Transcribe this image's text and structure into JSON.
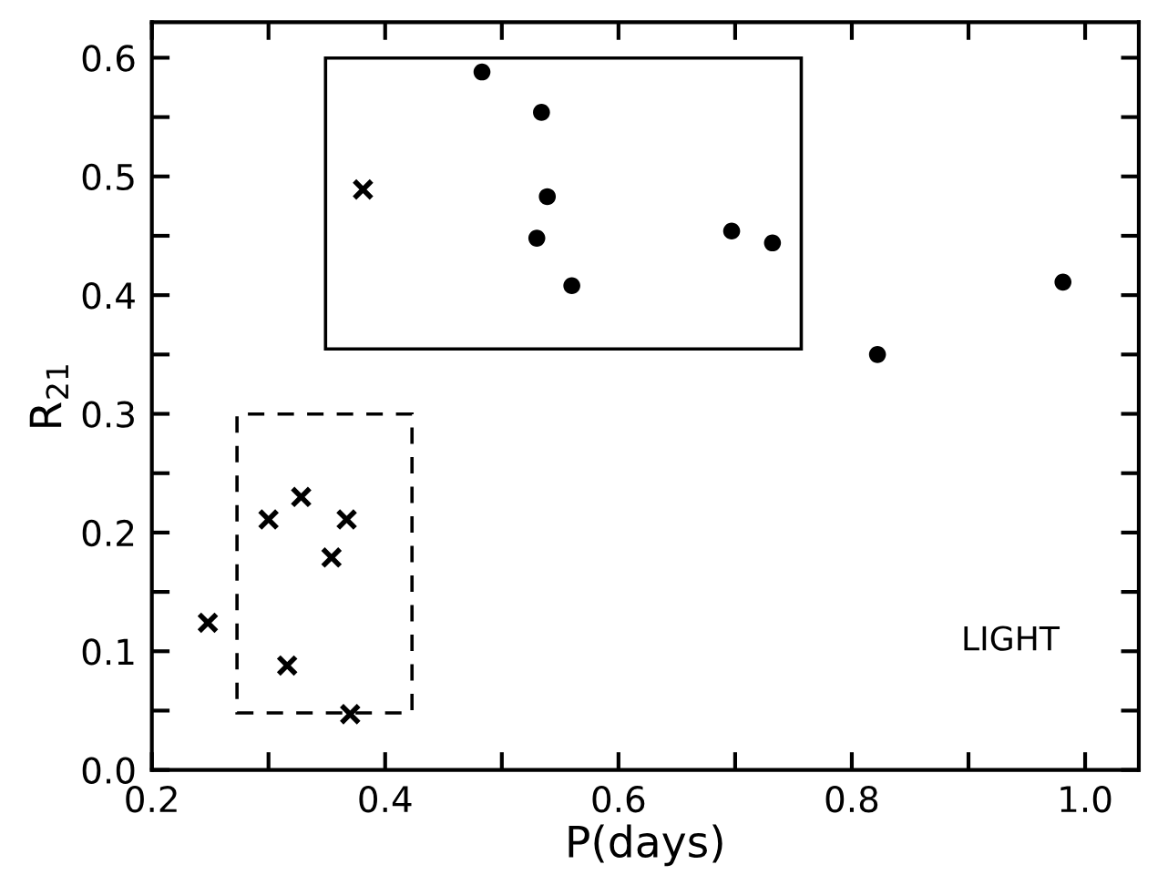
{
  "chart_data": {
    "type": "scatter",
    "xlabel": "P(days)",
    "ylabel": "R$_{21}$",
    "xlim": [
      0.2,
      1.046
    ],
    "ylim": [
      0.0,
      0.63
    ],
    "xticks": [
      {
        "value": 0.2,
        "label": "0.2"
      },
      {
        "value": 0.3,
        "label": null
      },
      {
        "value": 0.4,
        "label": "0.4"
      },
      {
        "value": 0.5,
        "label": null
      },
      {
        "value": 0.6,
        "label": "0.6"
      },
      {
        "value": 0.7,
        "label": null
      },
      {
        "value": 0.8,
        "label": "0.8"
      },
      {
        "value": 0.9,
        "label": null
      },
      {
        "value": 1.0,
        "label": "1.0"
      }
    ],
    "yticks": [
      {
        "value": 0.0,
        "label": "0.0"
      },
      {
        "value": 0.05,
        "label": null
      },
      {
        "value": 0.1,
        "label": "0.1"
      },
      {
        "value": 0.15,
        "label": null
      },
      {
        "value": 0.2,
        "label": "0.2"
      },
      {
        "value": 0.25,
        "label": null
      },
      {
        "value": 0.3,
        "label": "0.3"
      },
      {
        "value": 0.35,
        "label": null
      },
      {
        "value": 0.4,
        "label": "0.4"
      },
      {
        "value": 0.45,
        "label": null
      },
      {
        "value": 0.5,
        "label": "0.5"
      },
      {
        "value": 0.55,
        "label": null
      },
      {
        "value": 0.6,
        "label": "0.6"
      }
    ],
    "grid": false,
    "annotations": [
      "LIGHT"
    ],
    "series": [
      {
        "marker": "circle",
        "color": "#000000",
        "x": [
          0.483,
          0.534,
          0.539,
          0.53,
          0.56,
          0.697,
          0.732,
          0.822,
          0.981
        ],
        "values": [
          0.588,
          0.554,
          0.483,
          0.448,
          0.408,
          0.454,
          0.444,
          0.35,
          0.411
        ]
      },
      {
        "marker": "cross",
        "color": "#000000",
        "x": [
          0.381,
          0.248,
          0.3,
          0.328,
          0.367,
          0.354,
          0.316,
          0.37
        ],
        "values": [
          0.489,
          0.124,
          0.211,
          0.23,
          0.211,
          0.179,
          0.088,
          0.047
        ]
      }
    ]
  }
}
